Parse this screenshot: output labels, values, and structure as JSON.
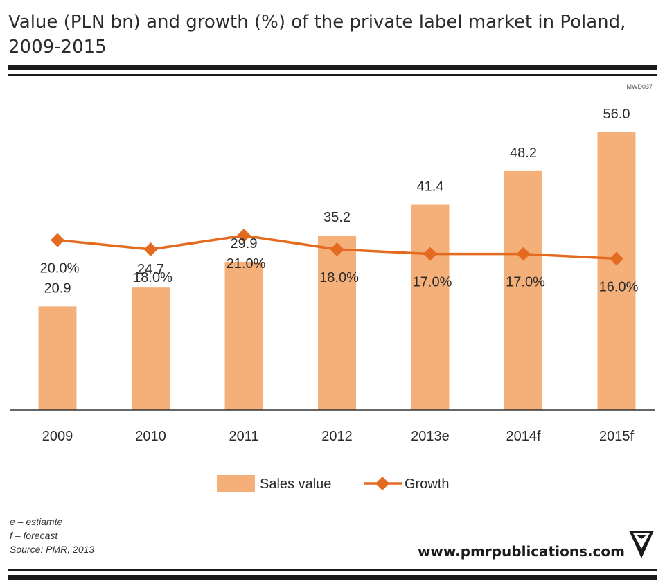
{
  "chart_data": {
    "type": "bar",
    "title": "Value (PLN bn) and growth (%) of the private label market in Poland, 2009-2015",
    "chart_code": "MWD037",
    "categories": [
      "2009",
      "2010",
      "2011",
      "2012",
      "2013e",
      "2014f",
      "2015f"
    ],
    "series": [
      {
        "name": "Sales value",
        "type": "bar",
        "color": "#F5B07A",
        "values": [
          20.9,
          24.7,
          29.9,
          35.2,
          41.4,
          48.2,
          56.0
        ],
        "labels": [
          "20.9",
          "24.7",
          "29.9",
          "35.2",
          "41.4",
          "48.2",
          "56.0"
        ]
      },
      {
        "name": "Growth",
        "type": "line",
        "color": "#E46A1F",
        "values": [
          20.0,
          18.0,
          21.0,
          18.0,
          17.0,
          17.0,
          16.0
        ],
        "labels": [
          "20.0%",
          "18.0%",
          "21.0%",
          "18.0%",
          "17.0%",
          "17.0%",
          "16.0%"
        ]
      }
    ],
    "grid": false,
    "legend_position": "bottom"
  },
  "footnotes": [
    "e – estiamte",
    "f – forecast",
    "Source: PMR, 2013"
  ],
  "website": "www.pmrpublications.com"
}
